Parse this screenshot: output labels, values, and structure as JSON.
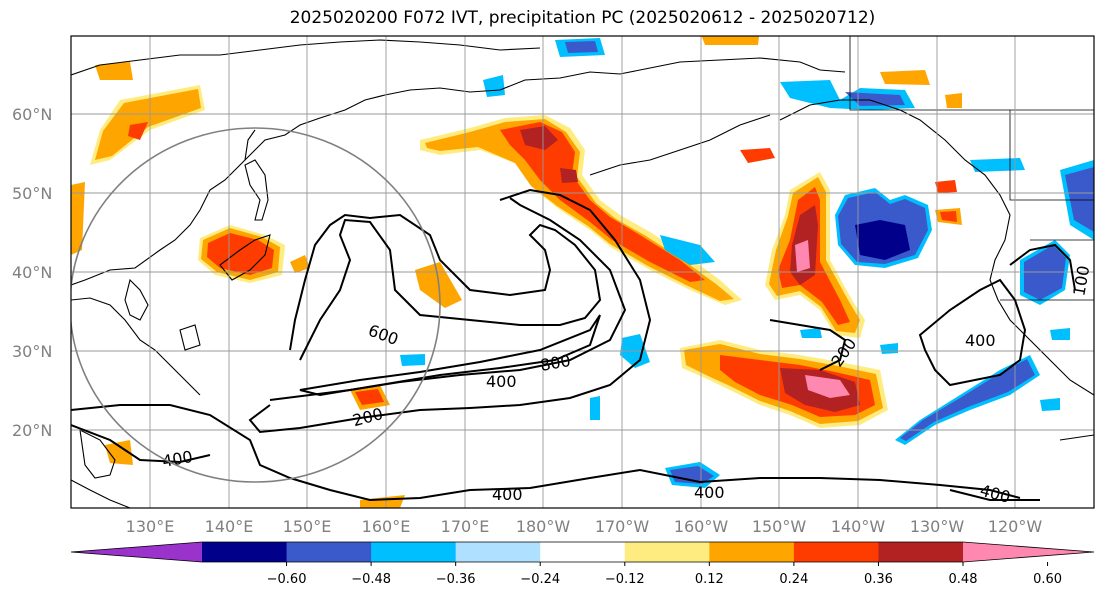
{
  "title": "2025020200 F072 IVT, precipitation PC (2025020612 - 2025020712)",
  "map": {
    "lat_labels": [
      "60°N",
      "50°N",
      "40°N",
      "30°N",
      "20°N"
    ],
    "lon_labels": [
      "130°E",
      "140°E",
      "150°E",
      "160°E",
      "170°E",
      "180°W",
      "170°W",
      "160°W",
      "150°W",
      "140°W",
      "130°W",
      "120°W"
    ],
    "contour_labels": {
      "c600": "600",
      "c800": "800",
      "c400a": "400",
      "c200a": "200",
      "c400b": "400",
      "c400c": "400",
      "c400d": "400",
      "c200b": "200",
      "c400e": "400",
      "c400f": "400",
      "c100": "100"
    }
  },
  "colorbar": {
    "colors": [
      "#9933cc",
      "#00008b",
      "#3a5acc",
      "#00bfff",
      "#b0e0ff",
      "#ffffff",
      "#ffec80",
      "#ffa500",
      "#ff3c00",
      "#b22222",
      "#ff88b0"
    ],
    "tick_labels": [
      "−0.60",
      "−0.48",
      "−0.36",
      "−0.24",
      "−0.12",
      "0.12",
      "0.24",
      "0.36",
      "0.48",
      "0.60"
    ]
  }
}
